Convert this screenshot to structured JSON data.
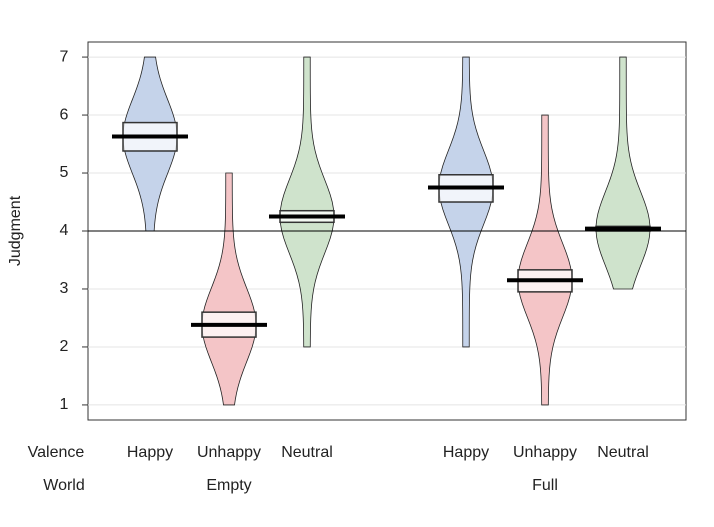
{
  "chart_data": {
    "type": "pirate",
    "ylabel": "Judgment",
    "ylim": [
      0.74,
      7.26
    ],
    "yticks": [
      1,
      2,
      3,
      4,
      5,
      6,
      7
    ],
    "grid": true,
    "reference_line": 4,
    "row_labels": [
      "Valence",
      "World"
    ],
    "worlds": [
      {
        "name": "Empty",
        "groups": [
          {
            "name": "Happy",
            "color": "#c5d3ea",
            "mean": 5.63,
            "interval": [
              5.38,
              5.87
            ],
            "range": [
              4,
              7
            ]
          },
          {
            "name": "Unhappy",
            "color": "#f4c5c7",
            "mean": 2.38,
            "interval": [
              2.17,
              2.6
            ],
            "range": [
              1,
              5
            ]
          },
          {
            "name": "Neutral",
            "color": "#cfe3cc",
            "mean": 4.25,
            "interval": [
              4.15,
              4.35
            ],
            "range": [
              2,
              7
            ]
          }
        ]
      },
      {
        "name": "Full",
        "groups": [
          {
            "name": "Happy",
            "color": "#c5d3ea",
            "mean": 4.75,
            "interval": [
              4.5,
              4.97
            ],
            "range": [
              2,
              7
            ]
          },
          {
            "name": "Unhappy",
            "color": "#f4c5c7",
            "mean": 3.15,
            "interval": [
              2.95,
              3.33
            ],
            "range": [
              1,
              6
            ]
          },
          {
            "name": "Neutral",
            "color": "#cfe3cc",
            "mean": 4.04,
            "interval": [
              4.0,
              4.08
            ],
            "range": [
              3,
              7
            ]
          }
        ]
      }
    ]
  }
}
